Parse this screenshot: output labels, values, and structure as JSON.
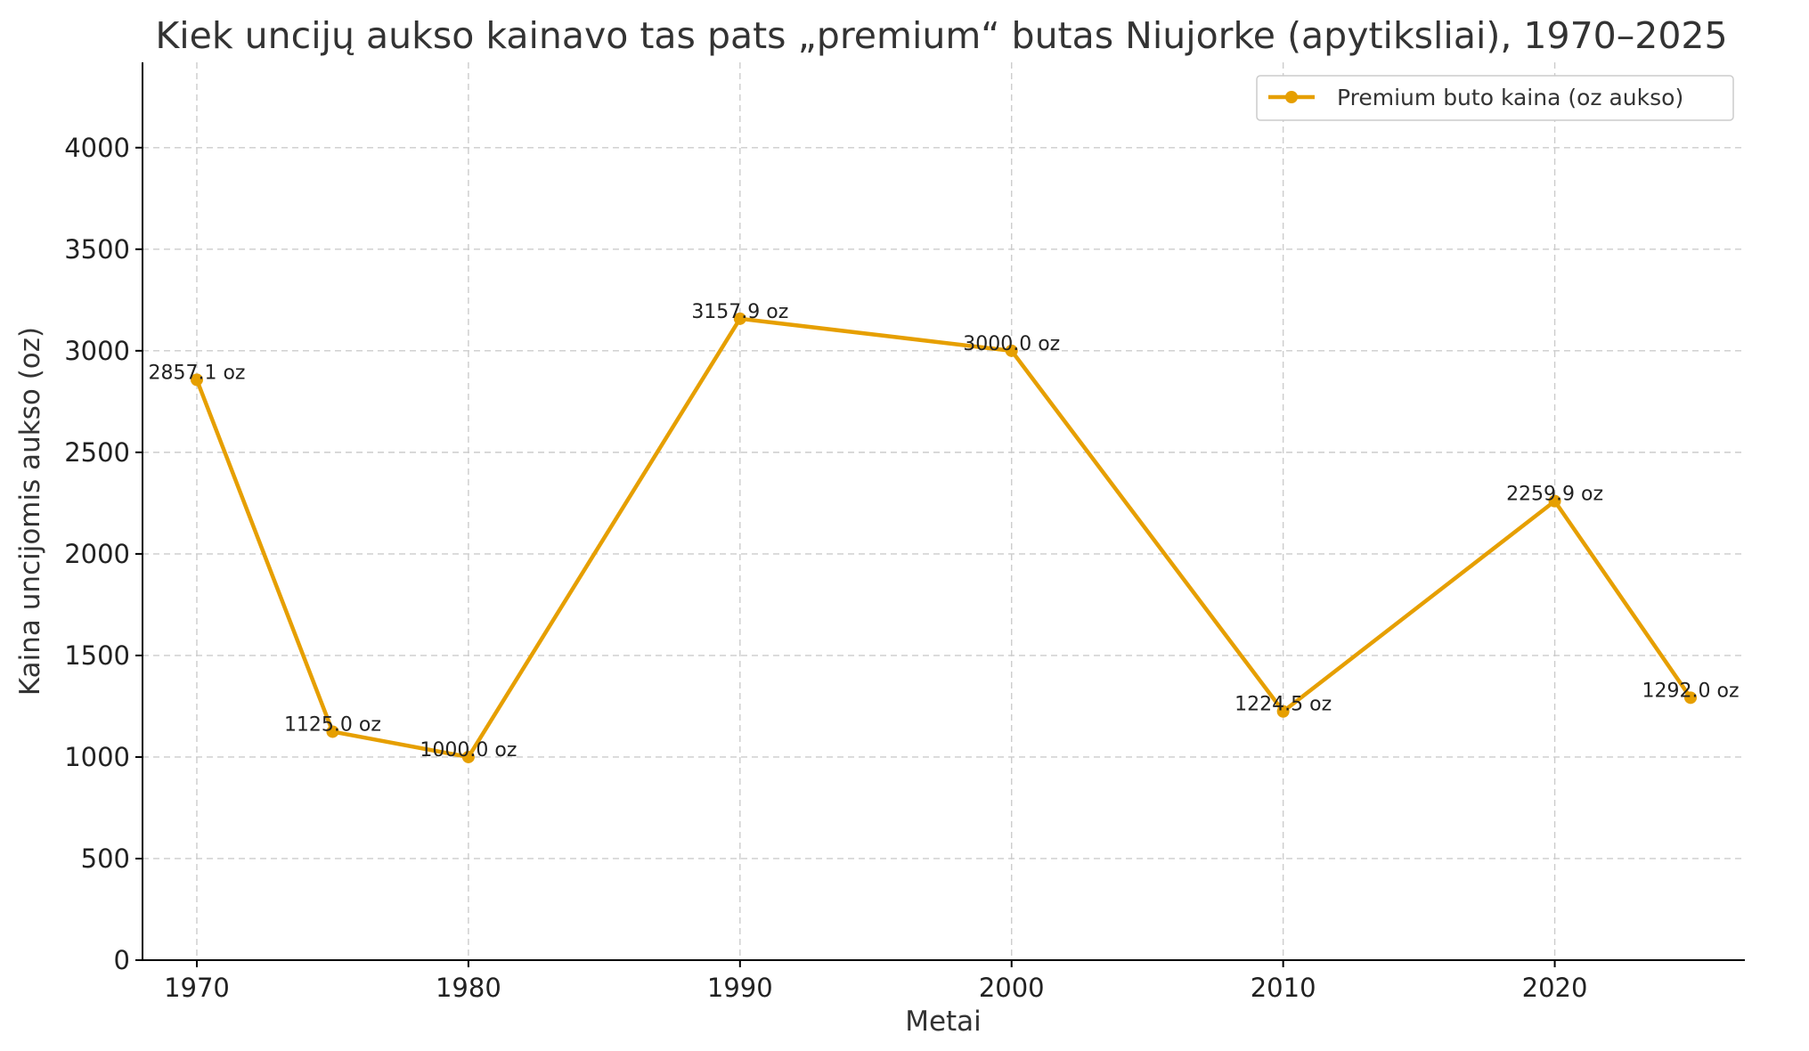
{
  "chart_data": {
    "type": "line",
    "title": "Kiek uncijų aukso kainavo tas pats „premium“ butas Niujorke (apytiksliai), 1970–2025",
    "xlabel": "Metai",
    "ylabel": "Kaina uncijomis aukso (oz)",
    "xlim": [
      1968,
      2027
    ],
    "ylim": [
      0,
      4420
    ],
    "x_ticks": [
      1970,
      1980,
      1990,
      2000,
      2010,
      2020
    ],
    "y_ticks": [
      0,
      500,
      1000,
      1500,
      2000,
      2500,
      3000,
      3500,
      4000
    ],
    "grid": true,
    "legend_position": "top-right",
    "series": [
      {
        "name": "Premium buto kaina (oz aukso)",
        "color": "#E69F00",
        "x": [
          1970,
          1975,
          1980,
          1990,
          2000,
          2010,
          2020,
          2025
        ],
        "y": [
          2857.1,
          1125.0,
          1000.0,
          3157.9,
          3000.0,
          1224.5,
          2259.9,
          1292.0
        ],
        "labels": [
          "2857.1 oz",
          "1125.0 oz",
          "1000.0 oz",
          "3157.9 oz",
          "3000.0 oz",
          "1224.5 oz",
          "2259.9 oz",
          "1292.0 oz"
        ]
      }
    ]
  }
}
